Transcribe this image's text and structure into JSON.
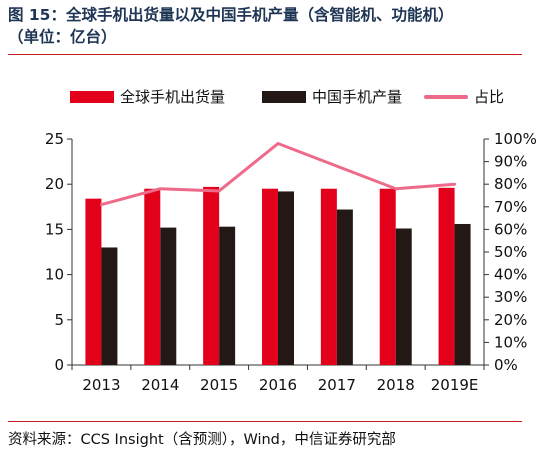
{
  "figure": {
    "title_line1": "图 15：全球手机出货量以及中国手机产量（含智能机、功能机）",
    "title_line2": "（单位：亿台）",
    "source": "资料来源：CCS Insight（含预测），Wind，中信证券研究部"
  },
  "colors": {
    "red": "#e3001b",
    "black": "#231815",
    "pink": "#ee6a8a",
    "rule": "#c02020"
  },
  "chart_data": {
    "type": "bar",
    "categories": [
      "2013",
      "2014",
      "2015",
      "2016",
      "2017",
      "2018",
      "2019E"
    ],
    "series": [
      {
        "name": "全球手机出货量",
        "type": "bar",
        "axis": "left",
        "values": [
          18.4,
          19.5,
          19.7,
          19.5,
          19.5,
          19.5,
          19.6
        ]
      },
      {
        "name": "中国手机产量",
        "type": "bar",
        "axis": "left",
        "values": [
          13.0,
          15.2,
          15.3,
          19.2,
          17.2,
          15.1,
          15.6
        ]
      },
      {
        "name": "占比",
        "type": "line",
        "axis": "right",
        "values": [
          0.71,
          0.78,
          0.77,
          0.98,
          0.88,
          0.78,
          0.8
        ]
      }
    ],
    "y_left": {
      "min": 0,
      "max": 25,
      "ticks": [
        0,
        5,
        10,
        15,
        20,
        25
      ]
    },
    "y_right": {
      "min": 0,
      "max": 1.0,
      "ticks": [
        "0%",
        "10%",
        "20%",
        "30%",
        "40%",
        "50%",
        "60%",
        "70%",
        "80%",
        "90%",
        "100%"
      ]
    },
    "legend": "top",
    "grid": false
  }
}
